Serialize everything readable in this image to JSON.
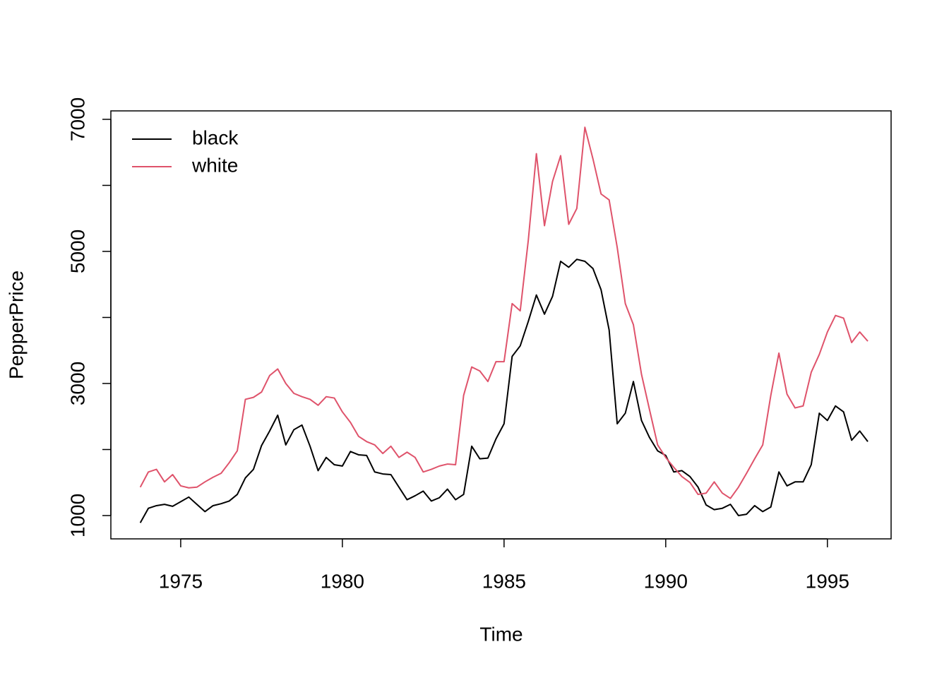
{
  "chart_data": {
    "type": "line",
    "xlabel": "Time",
    "ylabel": "PepperPrice",
    "x": [
      1973.75,
      1974,
      1974.25,
      1974.5,
      1974.75,
      1975,
      1975.25,
      1975.5,
      1975.75,
      1976,
      1976.25,
      1976.5,
      1976.75,
      1977,
      1977.25,
      1977.5,
      1977.75,
      1978,
      1978.25,
      1978.5,
      1978.75,
      1979,
      1979.25,
      1979.5,
      1979.75,
      1980,
      1980.25,
      1980.5,
      1980.75,
      1981,
      1981.25,
      1981.5,
      1981.75,
      1982,
      1982.25,
      1982.5,
      1982.75,
      1983,
      1983.25,
      1983.5,
      1983.75,
      1984,
      1984.25,
      1984.5,
      1984.75,
      1985,
      1985.25,
      1985.5,
      1985.75,
      1986,
      1986.25,
      1986.5,
      1986.75,
      1987,
      1987.25,
      1987.5,
      1987.75,
      1988,
      1988.25,
      1988.5,
      1988.75,
      1989,
      1989.25,
      1989.5,
      1989.75,
      1990,
      1990.25,
      1990.5,
      1990.75,
      1991,
      1991.25,
      1991.5,
      1991.75,
      1992,
      1992.25,
      1992.5,
      1992.75,
      1993,
      1993.25,
      1993.5,
      1993.75,
      1994,
      1994.25,
      1994.5,
      1994.75,
      1995,
      1995.25,
      1995.5,
      1995.75,
      1996,
      1996.25
    ],
    "series": [
      {
        "name": "black",
        "color": "#000000",
        "values": [
          890,
          1110,
          1150,
          1170,
          1140,
          1210,
          1280,
          1170,
          1060,
          1150,
          1180,
          1220,
          1320,
          1570,
          1700,
          2060,
          2280,
          2520,
          2070,
          2300,
          2370,
          2050,
          1680,
          1880,
          1770,
          1750,
          1970,
          1920,
          1910,
          1660,
          1630,
          1620,
          1430,
          1240,
          1300,
          1370,
          1220,
          1270,
          1400,
          1240,
          1320,
          2050,
          1860,
          1870,
          2160,
          2390,
          3410,
          3570,
          3940,
          4340,
          4050,
          4320,
          4850,
          4760,
          4880,
          4850,
          4740,
          4420,
          3810,
          2390,
          2550,
          3030,
          2440,
          2180,
          1980,
          1910,
          1660,
          1680,
          1590,
          1430,
          1160,
          1090,
          1110,
          1170,
          1000,
          1020,
          1150,
          1060,
          1130,
          1660,
          1450,
          1510,
          1510,
          1770,
          2550,
          2440,
          2660,
          2570,
          2140,
          2280,
          2120
        ]
      },
      {
        "name": "white",
        "color": "#DF536B",
        "values": [
          1430,
          1660,
          1700,
          1510,
          1620,
          1450,
          1420,
          1430,
          1510,
          1580,
          1640,
          1800,
          1980,
          2760,
          2790,
          2870,
          3120,
          3220,
          3000,
          2850,
          2800,
          2760,
          2670,
          2800,
          2780,
          2570,
          2410,
          2200,
          2120,
          2070,
          1940,
          2050,
          1880,
          1960,
          1880,
          1660,
          1700,
          1750,
          1780,
          1770,
          2820,
          3250,
          3190,
          3030,
          3330,
          3330,
          4210,
          4100,
          5170,
          6480,
          5390,
          6060,
          6450,
          5410,
          5650,
          6880,
          6400,
          5870,
          5780,
          5060,
          4210,
          3890,
          3140,
          2600,
          2070,
          1880,
          1730,
          1590,
          1500,
          1320,
          1340,
          1510,
          1340,
          1260,
          1430,
          1640,
          1860,
          2070,
          2820,
          3460,
          2840,
          2630,
          2660,
          3170,
          3440,
          3780,
          4030,
          3990,
          3620,
          3780,
          3640
        ]
      }
    ],
    "xlim": [
      1972.84,
      1996.97
    ],
    "xticks": [
      1975,
      1980,
      1985,
      1990,
      1995
    ],
    "ylim": [
      647,
      7128
    ],
    "yticks": [
      1000,
      3000,
      5000,
      7000
    ],
    "yticks_unlabeled": [
      2000,
      4000,
      6000
    ],
    "legend": "topleft"
  }
}
